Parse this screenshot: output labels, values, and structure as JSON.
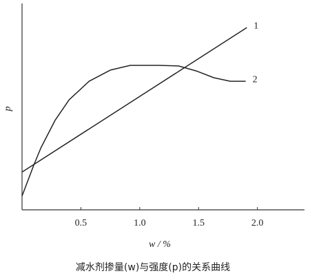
{
  "chart_data": {
    "type": "line",
    "title": "减水剂掺量(w)与强度(p)的关系曲线",
    "xlabel": "w / %",
    "ylabel": "p",
    "xlim": [
      0,
      2.4
    ],
    "xticks": [
      0.5,
      {
        "value": 1,
        "label": "1.0"
      },
      1.5,
      {
        "value": 2,
        "label": "2.0"
      }
    ],
    "ylim": [
      0,
      10
    ],
    "grid": false,
    "series": [
      {
        "name": "1",
        "color": "#222222",
        "x": [
          0,
          1.91
        ],
        "values": [
          1.83,
          8.83
        ]
      },
      {
        "name": "2",
        "color": "#222222",
        "x": [
          0,
          0.1,
          0.16,
          0.28,
          0.4,
          0.57,
          0.75,
          0.92,
          1.16,
          1.33,
          1.48,
          1.63,
          1.77,
          1.9
        ],
        "values": [
          0.67,
          2.17,
          3.0,
          4.33,
          5.33,
          6.23,
          6.77,
          7.0,
          7.0,
          6.97,
          6.73,
          6.4,
          6.23,
          6.23
        ]
      }
    ]
  }
}
